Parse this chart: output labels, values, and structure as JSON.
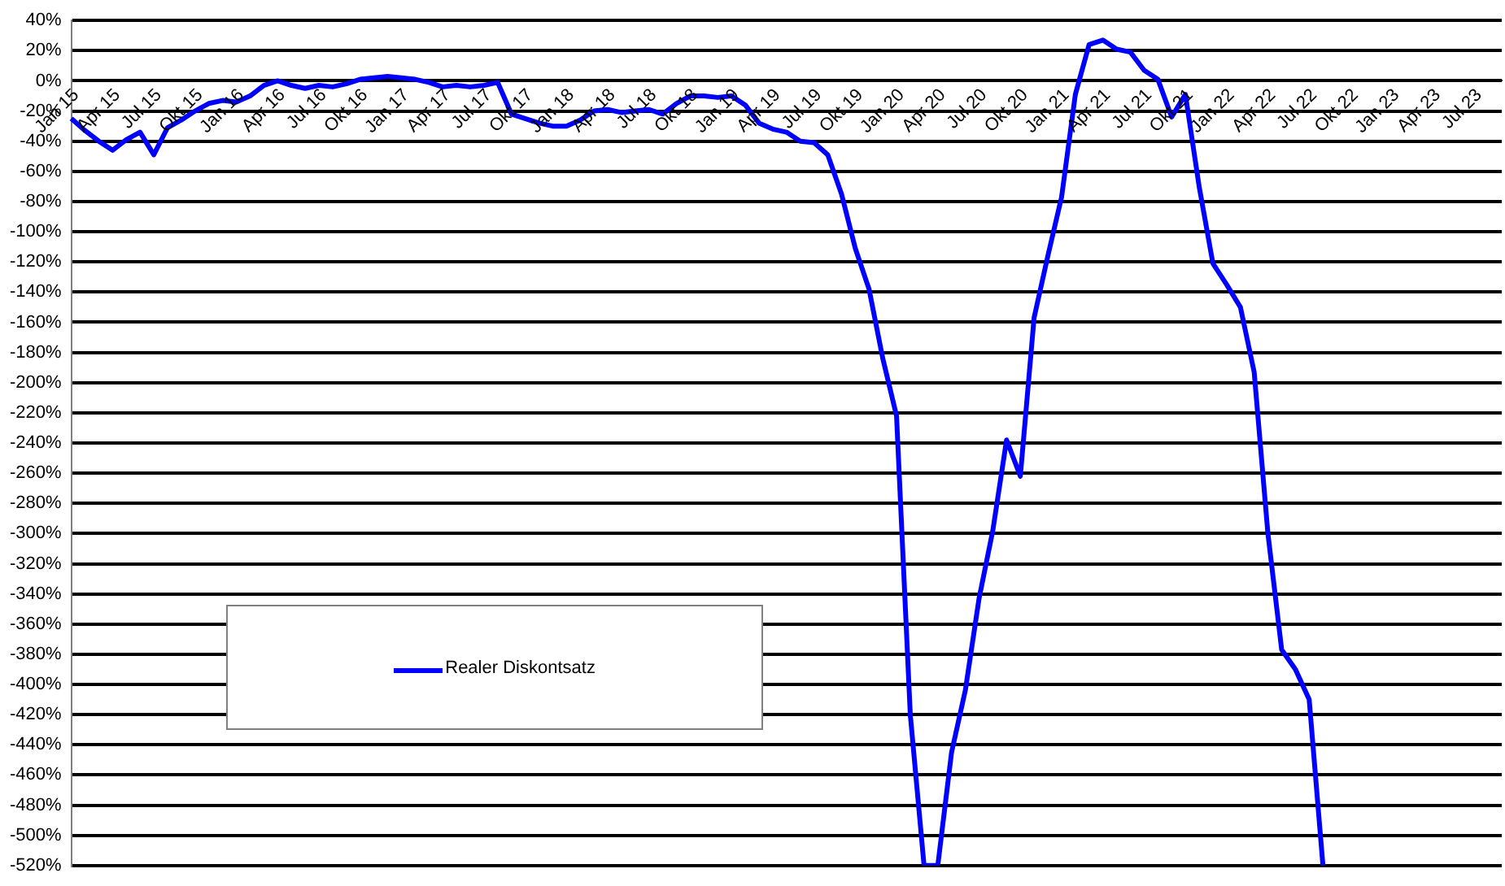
{
  "chart_data": {
    "type": "line",
    "categories": [
      "Jan 15",
      null,
      null,
      "Apr 15",
      null,
      null,
      "Jul 15",
      null,
      null,
      "Okt 15",
      null,
      null,
      "Jan 16",
      null,
      null,
      "Apr 16",
      null,
      null,
      "Jul 16",
      null,
      null,
      "Okt 16",
      null,
      null,
      "Jan 17",
      null,
      null,
      "Apr 17",
      null,
      null,
      "Jul 17",
      null,
      null,
      "Okt 17",
      null,
      null,
      "Jan 18",
      null,
      null,
      "Apr 18",
      null,
      null,
      "Jul 18",
      null,
      null,
      "Okt 18",
      null,
      null,
      "Jan 19",
      null,
      null,
      "Apr 19",
      null,
      null,
      "Jul 19",
      null,
      null,
      "Okt 19",
      null,
      null,
      "Jan 20",
      null,
      null,
      "Apr 20",
      null,
      null,
      "Jul 20",
      null,
      null,
      "Okt 20",
      null,
      null,
      "Jan 21",
      null,
      null,
      "Apr 21",
      null,
      null,
      "Jul 21",
      null,
      null,
      "Okt 21",
      null,
      null,
      "Jan 22",
      null,
      null,
      "Apr 22",
      null,
      null,
      "Jul 22",
      null,
      null,
      "Okt 22",
      null,
      null,
      "Jan 23",
      null,
      null,
      "Apr 23",
      null,
      null,
      "Jul 23",
      null,
      null
    ],
    "series": [
      {
        "name": "Realer Diskontsatz",
        "color": "#0000ff",
        "values": [
          -25,
          -33,
          -40,
          -46,
          -39,
          -34,
          -49,
          -31,
          -26,
          -20,
          -15,
          -13,
          -14,
          -10,
          -3,
          0,
          -3,
          -5,
          -3,
          -4,
          -2,
          1,
          2,
          3,
          2,
          1,
          -1,
          -4,
          -3,
          -4,
          -3,
          -1,
          -22,
          -25,
          -28,
          -30,
          -30,
          -26,
          -20,
          -19,
          -21,
          -20,
          -19,
          -22,
          -15,
          -10,
          -10,
          -11,
          -10,
          -16,
          -28,
          -32,
          -34,
          -40,
          -41,
          -49,
          -75,
          -111,
          -138,
          -184,
          -222,
          -420,
          -520,
          -520,
          -445,
          -404,
          -343,
          -298,
          -238,
          -262,
          -157,
          -116,
          -77,
          -9,
          24,
          27,
          21,
          19,
          7,
          1,
          -24,
          -9,
          -70,
          -121,
          -135,
          -150,
          -193,
          -300,
          -377,
          -390,
          -410,
          -520,
          null,
          null,
          null,
          null,
          null,
          null,
          null,
          null,
          null,
          null,
          null,
          null,
          null
        ]
      }
    ],
    "ylim": [
      -520,
      40
    ],
    "yticks": [
      {
        "value": 40,
        "label": "40%"
      },
      {
        "value": 20,
        "label": "20%"
      },
      {
        "value": 0,
        "label": "0%"
      },
      {
        "value": -20,
        "label": "-20%"
      },
      {
        "value": -40,
        "label": "-40%"
      },
      {
        "value": -60,
        "label": "-60%"
      },
      {
        "value": -80,
        "label": "-80%"
      },
      {
        "value": -100,
        "label": "-100%"
      },
      {
        "value": -120,
        "label": "-120%"
      },
      {
        "value": -140,
        "label": "-140%"
      },
      {
        "value": -160,
        "label": "-160%"
      },
      {
        "value": -180,
        "label": "-180%"
      },
      {
        "value": -200,
        "label": "-200%"
      },
      {
        "value": -220,
        "label": "-220%"
      },
      {
        "value": -240,
        "label": "-240%"
      },
      {
        "value": -260,
        "label": "-260%"
      },
      {
        "value": -280,
        "label": "-280%"
      },
      {
        "value": -300,
        "label": "-300%"
      },
      {
        "value": -320,
        "label": "-320%"
      },
      {
        "value": -340,
        "label": "-340%"
      },
      {
        "value": -360,
        "label": "-360%"
      },
      {
        "value": -380,
        "label": "-380%"
      },
      {
        "value": -400,
        "label": "-400%"
      },
      {
        "value": -420,
        "label": "-420%"
      },
      {
        "value": -440,
        "label": "-440%"
      },
      {
        "value": -460,
        "label": "-460%"
      },
      {
        "value": -480,
        "label": "-480%"
      },
      {
        "value": -500,
        "label": "-500%"
      },
      {
        "value": -520,
        "label": "-520%"
      }
    ],
    "grid": "y",
    "legend": "bottom left",
    "marker": "none",
    "line_style": "solid"
  }
}
